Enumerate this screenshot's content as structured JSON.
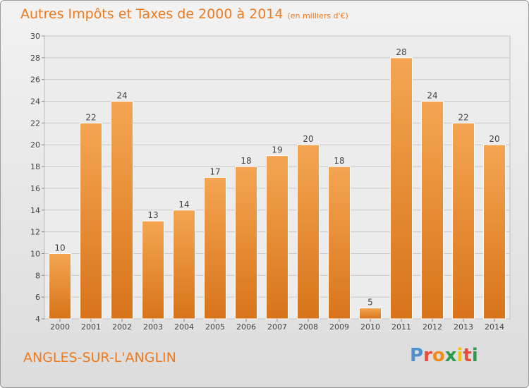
{
  "header": {
    "title": "Autres Impôts et Taxes de 2000 à 2014",
    "unit": "(en milliers d'€)"
  },
  "footer": {
    "commune": "ANGLES-SUR-L'ANGLIN",
    "logo_letters": [
      "P",
      "r",
      "o",
      "x",
      "i",
      "t",
      "i"
    ],
    "logo_colors": [
      "#4e8fcf",
      "#e84c3d",
      "#f08a1c",
      "#2d9b4e",
      "#f2c40f",
      "#e84c3d",
      "#2d9b4e"
    ]
  },
  "colors": {
    "bar_top": "#f4a552",
    "bar_bottom": "#d8741a",
    "bar_edge": "#ffffff",
    "title": "#ee7a1e",
    "grid": "#c8c8c8",
    "text": "#444444"
  },
  "chart_data": {
    "type": "bar",
    "categories": [
      "2000",
      "2001",
      "2002",
      "2003",
      "2004",
      "2005",
      "2006",
      "2007",
      "2008",
      "2009",
      "2010",
      "2011",
      "2012",
      "2013",
      "2014"
    ],
    "values": [
      10,
      22,
      24,
      13,
      14,
      17,
      18,
      19,
      20,
      18,
      5,
      28,
      24,
      22,
      20
    ],
    "title": "Autres Impôts et Taxes de 2000 à 2014",
    "ylim": [
      4,
      30
    ],
    "yticks": [
      4,
      6,
      8,
      10,
      12,
      14,
      16,
      18,
      20,
      22,
      24,
      26,
      28,
      30
    ],
    "grid": true,
    "data_labels": true
  }
}
